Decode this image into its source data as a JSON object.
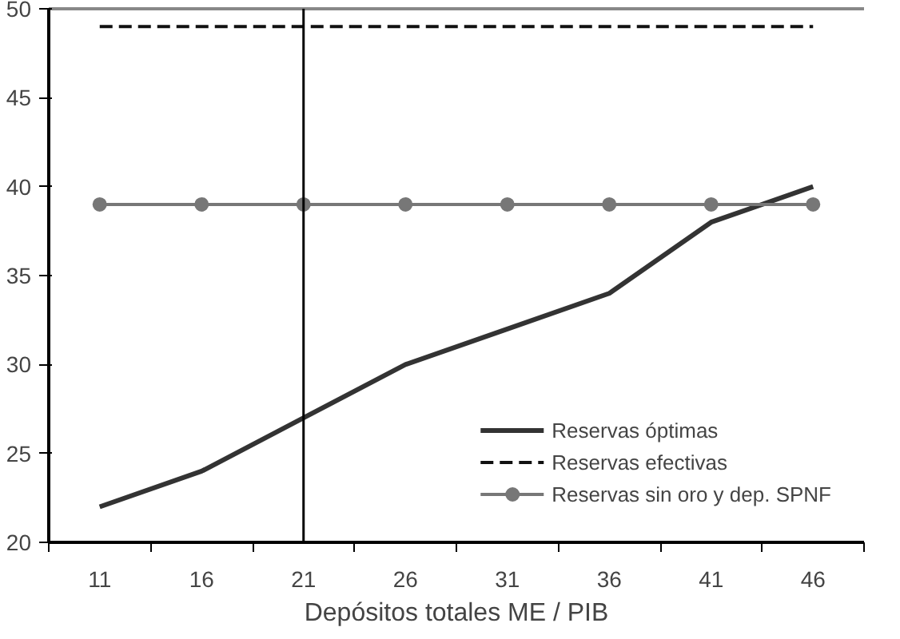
{
  "chart_data": {
    "type": "line",
    "xlabel": "Depósitos totales ME / PIB",
    "categories": [
      "11",
      "16",
      "21",
      "26",
      "31",
      "36",
      "41",
      "46"
    ],
    "series": [
      {
        "name": "Reservas óptimas",
        "color": "#333333",
        "values": [
          22,
          24,
          27,
          30,
          32,
          34,
          38,
          40
        ],
        "line_style": "solid",
        "marker": "none"
      },
      {
        "name": "Reservas efectivas",
        "color": "#111111",
        "values": [
          49,
          49,
          49,
          49,
          49,
          49,
          49,
          49
        ],
        "line_style": "dashed",
        "marker": "none"
      },
      {
        "name": "Reservas sin oro y dep. SPNF",
        "color": "#777777",
        "values": [
          39,
          39,
          39,
          39,
          39,
          39,
          39,
          39
        ],
        "line_style": "solid",
        "marker": "circle"
      }
    ],
    "ylim": [
      20,
      50
    ],
    "yticks": [
      20,
      25,
      30,
      35,
      40,
      45,
      50
    ],
    "grid": false,
    "legend": "bottom right",
    "ref_lines": [
      {
        "axis": "x",
        "value": "21",
        "color": "#000000"
      }
    ]
  }
}
